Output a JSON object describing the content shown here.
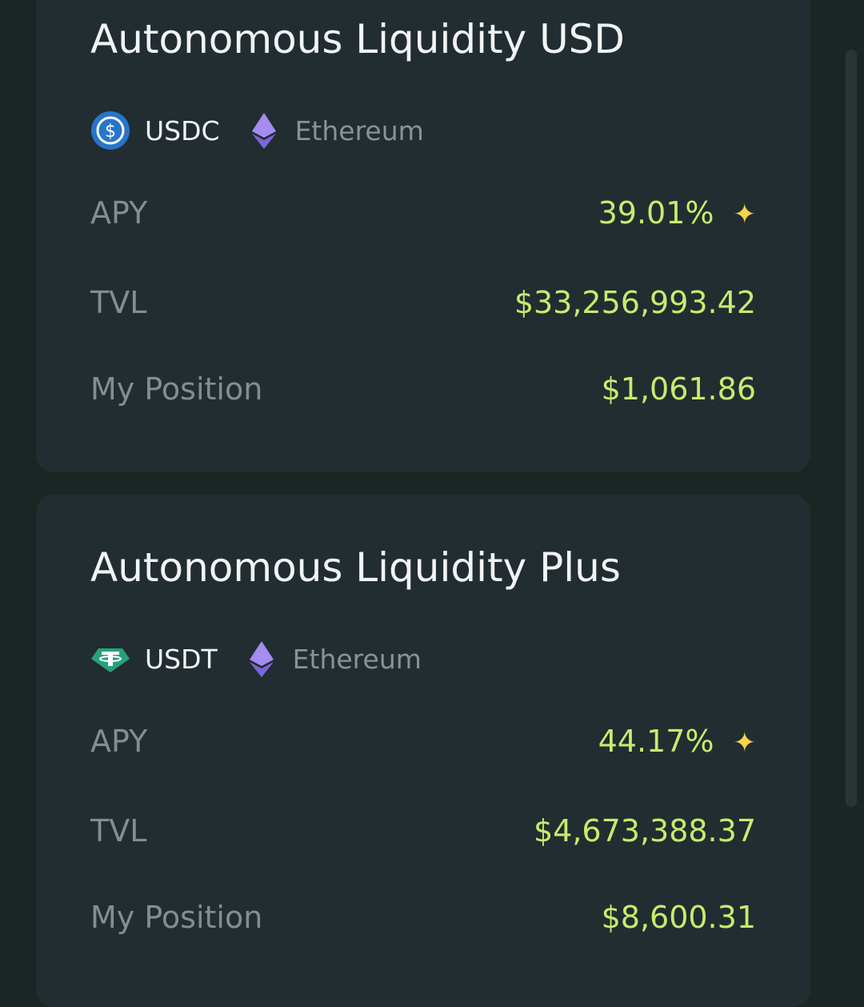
{
  "cards": [
    {
      "title": "Autonomous Liquidity USD",
      "token": "USDC",
      "network": "Ethereum",
      "rows": [
        {
          "label": "APY",
          "value": "39.01%"
        },
        {
          "label": "TVL",
          "value": "$33,256,993.42"
        },
        {
          "label": "My Position",
          "value": "$1,061.86"
        }
      ]
    },
    {
      "title": "Autonomous Liquidity Plus",
      "token": "USDT",
      "network": "Ethereum",
      "rows": [
        {
          "label": "APY",
          "value": "44.17%"
        },
        {
          "label": "TVL",
          "value": "$4,673,388.37"
        },
        {
          "label": "My Position",
          "value": "$8,600.31"
        }
      ]
    }
  ]
}
